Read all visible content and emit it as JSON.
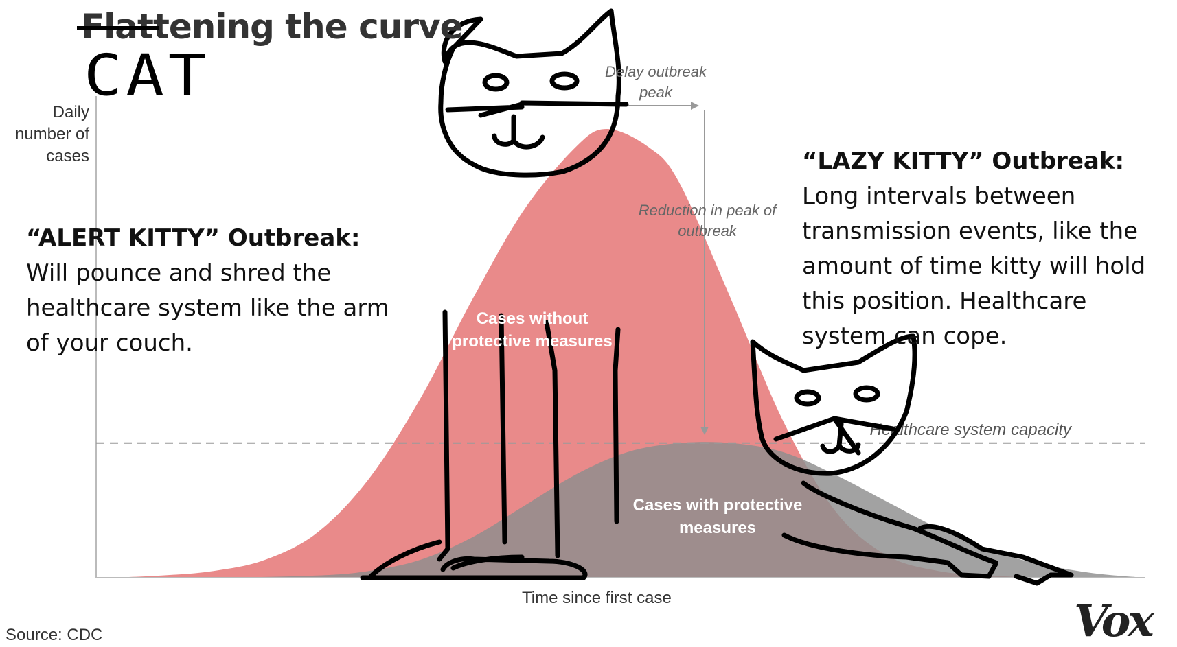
{
  "title": {
    "struck_part": "Flat",
    "rest": "tening the curve",
    "replacement": "CAT"
  },
  "chart_data": {
    "type": "area",
    "xlabel": "Time since first case",
    "ylabel": "Daily number of cases",
    "ylabel_lines": [
      "Daily",
      "number of",
      "cases"
    ],
    "ylim": [
      0,
      100
    ],
    "xlim": [
      0,
      100
    ],
    "grid": false,
    "series": [
      {
        "name": "Cases without protective measures",
        "label_lines": [
          "Cases without",
          "protective measures"
        ],
        "color": "#e98a8a",
        "x": [
          0,
          5,
          10,
          15,
          20,
          25,
          30,
          35,
          40,
          45,
          48,
          52,
          55,
          60,
          65,
          70,
          75,
          80,
          85,
          90,
          95,
          100
        ],
        "y": [
          0,
          0.5,
          1.5,
          4,
          10,
          22,
          40,
          62,
          82,
          96,
          100,
          96,
          88,
          62,
          35,
          15,
          5,
          1.5,
          0.5,
          0,
          0,
          0
        ]
      },
      {
        "name": "Cases with protective measures",
        "label_lines": [
          "Cases with protective",
          "measures"
        ],
        "color": "#8e8e8e",
        "x": [
          0,
          10,
          20,
          25,
          30,
          35,
          40,
          45,
          50,
          55,
          60,
          65,
          70,
          75,
          80,
          85,
          90,
          95,
          100
        ],
        "y": [
          0,
          0,
          0.5,
          1.5,
          4,
          9,
          16,
          23,
          28,
          30,
          30,
          28,
          23,
          17,
          11,
          6,
          3,
          1,
          0
        ]
      }
    ],
    "capacity": {
      "label": "Healthcare system capacity",
      "value": 30
    },
    "annotations": [
      {
        "text": [
          "Delay outbreak",
          "peak"
        ]
      },
      {
        "text": [
          "Reduction in peak of",
          "outbreak"
        ]
      }
    ]
  },
  "alert_kitty": {
    "heading": "“ALERT KITTY” Outbreak:",
    "body": "  Will pounce and shred the healthcare system like the arm of your couch."
  },
  "lazy_kitty": {
    "heading": "“LAZY KITTY” Outbreak:",
    "body": " Long intervals between transmission events, like the amount of time kitty will hold this position. Healthcare system can cope."
  },
  "source": "Source: CDC",
  "brand": "Vox",
  "colors": {
    "red_curve": "#e98a8a",
    "gray_curve": "#8e8e8e",
    "overlap": "#a67777",
    "axis": "#bbbbbb",
    "drawing": "#000000"
  }
}
